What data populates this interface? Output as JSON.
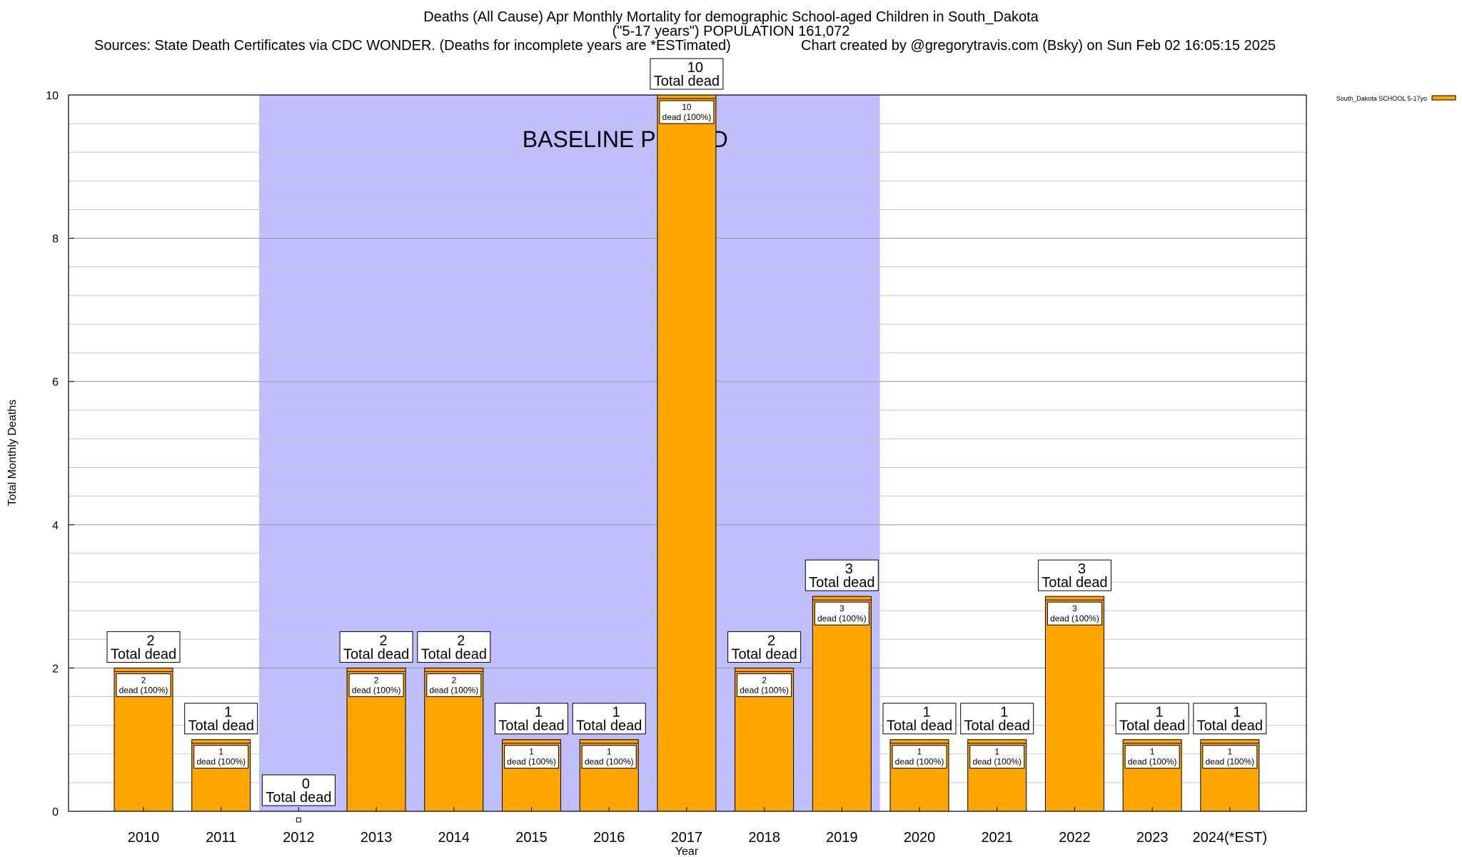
{
  "header": {
    "title_line1": "Deaths (All Cause) Apr Monthly Mortality for demographic School-aged Children in South_Dakota",
    "title_line2": "(\"5-17 years\") POPULATION 161,072",
    "sources": "Sources: State Death Certificates via CDC WONDER. (Deaths for incomplete years are *ESTimated)",
    "credit": "Chart created by @gregorytravis.com (Bsky) on Sun Feb 02 16:05:15 2025"
  },
  "chart_data": {
    "type": "bar",
    "title": "Deaths (All Cause) Apr Monthly Mortality for demographic School-aged Children in South_Dakota",
    "xlabel": "Year",
    "ylabel": "Total Monthly Deaths",
    "ylim": [
      0,
      10
    ],
    "yticks": [
      "0",
      "2",
      "4",
      "6",
      "8",
      "10"
    ],
    "grid": true,
    "legend_position": "top-right",
    "categories": [
      "2010",
      "2011",
      "2012",
      "2013",
      "2014",
      "2015",
      "2016",
      "2017",
      "2018",
      "2019",
      "2020",
      "2021",
      "2022",
      "2023",
      "2024(*EST)"
    ],
    "series": [
      {
        "name": "South_Dakota SCHOOL 5-17yo",
        "color": "#FFA500",
        "values": [
          2,
          1,
          0,
          2,
          2,
          1,
          1,
          10,
          2,
          3,
          1,
          1,
          3,
          1,
          1
        ]
      }
    ],
    "total_labels": [
      "2",
      "1",
      "0",
      "2",
      "2",
      "1",
      "1",
      "10",
      "2",
      "3",
      "1",
      "1",
      "3",
      "1",
      "1"
    ],
    "total_suffix": "Total dead",
    "inner_labels": [
      "2",
      "1",
      "",
      "2",
      "2",
      "1",
      "1",
      "10",
      "2",
      "3",
      "1",
      "1",
      "3",
      "1",
      "1"
    ],
    "inner_suffix": "dead (100%)",
    "baseline": {
      "label": "BASELINE PERIOD",
      "start": "2012",
      "end": "2019",
      "color": "#BFBFFF"
    }
  }
}
